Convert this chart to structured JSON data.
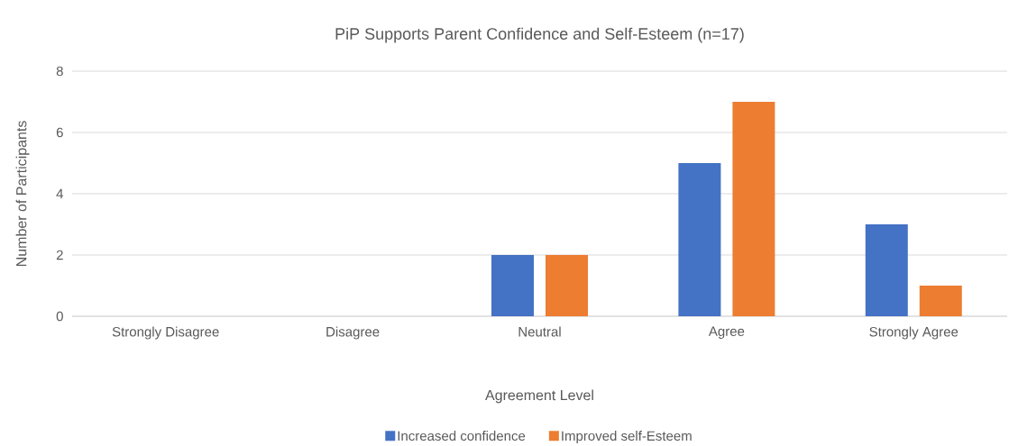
{
  "chart_data": {
    "type": "bar",
    "title": "PiP Supports Parent Confidence and Self-Esteem (n=17)",
    "xlabel": "Agreement Level",
    "ylabel": "Number of Participants",
    "categories": [
      "Strongly Disagree",
      "Disagree",
      "Neutral",
      "Agree",
      "Strongly Agree"
    ],
    "series": [
      {
        "name": "Increased confidence",
        "color": "#4472c4",
        "values": [
          0,
          0,
          2,
          5,
          3
        ]
      },
      {
        "name": "Improved self-Esteem",
        "color": "#ed7d31",
        "values": [
          0,
          0,
          2,
          7,
          1
        ]
      }
    ],
    "ylim": [
      0,
      8
    ],
    "yticks": [
      0,
      2,
      4,
      6,
      8
    ],
    "grid": "y",
    "legend": "bottom"
  }
}
